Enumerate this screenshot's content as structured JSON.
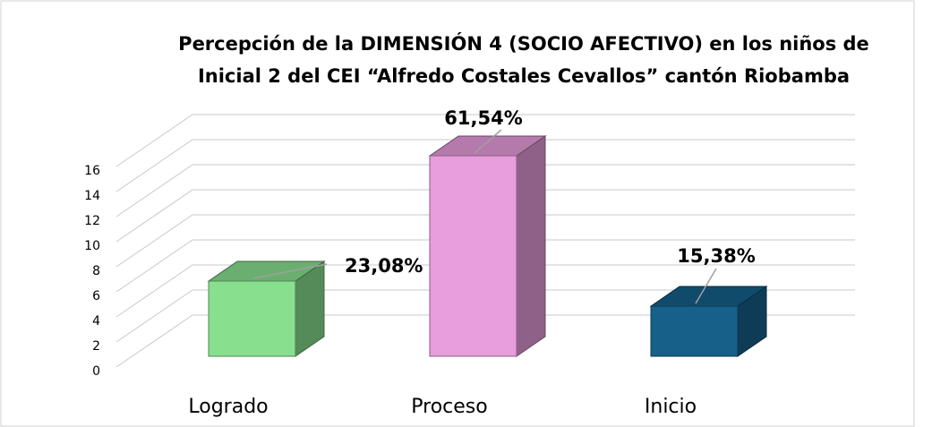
{
  "chart_data": {
    "type": "bar3d",
    "title": [
      "Percepción de la DIMENSIÓN 4 (SOCIO AFECTIVO) en los niños de",
      "Inicial 2 del CEI “Alfredo Costales Cevallos” cantón Riobamba"
    ],
    "categories": [
      "Logrado",
      "Proceso",
      "Inicio"
    ],
    "values": [
      6,
      16,
      4
    ],
    "percentages": [
      23.08,
      61.54,
      15.38
    ],
    "value_labels": [
      "23,08%",
      "61,54%",
      "15,38%"
    ],
    "colors": [
      "#88e08e",
      "#e89ddc",
      "#16608a"
    ],
    "ylim": [
      0,
      16
    ],
    "yticks": [
      0,
      2,
      4,
      6,
      8,
      10,
      12,
      14,
      16
    ],
    "grid": true
  }
}
